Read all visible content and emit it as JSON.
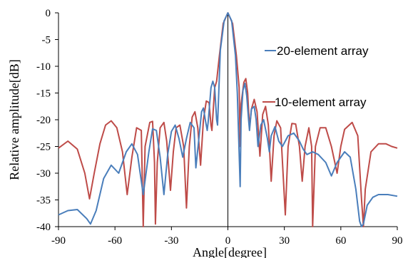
{
  "chart_data": {
    "type": "line",
    "xlabel": "Angle[degree]",
    "ylabel": "Relative amplitude[dB]",
    "xlim": [
      -90,
      90
    ],
    "ylim": [
      -40,
      0
    ],
    "xticks": [
      -90,
      -60,
      -30,
      0,
      30,
      60,
      90
    ],
    "yticks": [
      0,
      -5,
      -10,
      -15,
      -20,
      -25,
      -30,
      -35,
      -40
    ],
    "xtick_labels": [
      "-90",
      "-60",
      "-30",
      "0",
      "30",
      "60",
      "90"
    ],
    "ytick_labels": [
      "0",
      "-5",
      "-10",
      "-15",
      "-20",
      "-25",
      "-30",
      "-35",
      "-40"
    ],
    "grid": false,
    "series": [
      {
        "name": "20-element array",
        "color": "#4a7ebb",
        "points": [
          [
            -90,
            -37.8
          ],
          [
            -85,
            -37
          ],
          [
            -80,
            -36.8
          ],
          [
            -75,
            -38.5
          ],
          [
            -73,
            -39.5
          ],
          [
            -70,
            -37
          ],
          [
            -66,
            -31
          ],
          [
            -62,
            -28.5
          ],
          [
            -58,
            -30
          ],
          [
            -54,
            -26
          ],
          [
            -51,
            -24.5
          ],
          [
            -48,
            -26.5
          ],
          [
            -45,
            -34
          ],
          [
            -42,
            -26
          ],
          [
            -40,
            -21.7
          ],
          [
            -38,
            -22
          ],
          [
            -36,
            -27
          ],
          [
            -34,
            -34
          ],
          [
            -32,
            -26.5
          ],
          [
            -30,
            -22.2
          ],
          [
            -28,
            -21
          ],
          [
            -26,
            -23.5
          ],
          [
            -24,
            -27
          ],
          [
            -22,
            -23.5
          ],
          [
            -20,
            -20.5
          ],
          [
            -18,
            -21.5
          ],
          [
            -17,
            -29
          ],
          [
            -16,
            -25.5
          ],
          [
            -14,
            -18.5
          ],
          [
            -13,
            -17.8
          ],
          [
            -12,
            -20
          ],
          [
            -11,
            -22
          ],
          [
            -10.5,
            -20.5
          ],
          [
            -9,
            -14
          ],
          [
            -8,
            -12.8
          ],
          [
            -7,
            -14
          ],
          [
            -6,
            -20
          ],
          [
            -5.5,
            -21
          ],
          [
            -4,
            -7
          ],
          [
            -2,
            -1.5
          ],
          [
            0,
            0
          ],
          [
            2,
            -1.5
          ],
          [
            4,
            -8
          ],
          [
            5,
            -15
          ],
          [
            6.5,
            -32.5
          ],
          [
            7,
            -20
          ],
          [
            8,
            -14.5
          ],
          [
            9,
            -13.2
          ],
          [
            10,
            -15.5
          ],
          [
            11,
            -20
          ],
          [
            11.5,
            -22
          ],
          [
            12.5,
            -18
          ],
          [
            14,
            -17.5
          ],
          [
            15,
            -20
          ],
          [
            16,
            -25
          ],
          [
            17.5,
            -21
          ],
          [
            19,
            -20
          ],
          [
            21,
            -23.5
          ],
          [
            22,
            -26
          ],
          [
            23,
            -23
          ],
          [
            25,
            -21.3
          ],
          [
            27,
            -24
          ],
          [
            29,
            -25
          ],
          [
            32,
            -23
          ],
          [
            35,
            -22.5
          ],
          [
            38,
            -24
          ],
          [
            40,
            -25.5
          ],
          [
            42,
            -26.5
          ],
          [
            45,
            -26
          ],
          [
            48,
            -26.5
          ],
          [
            52,
            -28
          ],
          [
            55,
            -30.5
          ],
          [
            58,
            -28
          ],
          [
            62,
            -26
          ],
          [
            65,
            -27
          ],
          [
            68,
            -33
          ],
          [
            70,
            -39
          ],
          [
            71,
            -40
          ],
          [
            72,
            -39.5
          ],
          [
            74,
            -36
          ],
          [
            77,
            -34.5
          ],
          [
            80,
            -34
          ],
          [
            85,
            -34
          ],
          [
            90,
            -34.3
          ]
        ]
      },
      {
        "name": "10-element array",
        "color": "#be4b48",
        "points": [
          [
            -90,
            -25.3
          ],
          [
            -85,
            -24
          ],
          [
            -80,
            -25.5
          ],
          [
            -76,
            -30
          ],
          [
            -73.5,
            -34.8
          ],
          [
            -71,
            -30
          ],
          [
            -68,
            -24.5
          ],
          [
            -65,
            -21
          ],
          [
            -62,
            -20.2
          ],
          [
            -59,
            -21.5
          ],
          [
            -56,
            -26
          ],
          [
            -53.5,
            -34
          ],
          [
            -51,
            -27
          ],
          [
            -48.5,
            -21.5
          ],
          [
            -46,
            -22
          ],
          [
            -45,
            -40
          ],
          [
            -44,
            -25
          ],
          [
            -41.5,
            -20.5
          ],
          [
            -40,
            -20.3
          ],
          [
            -39,
            -28
          ],
          [
            -38.5,
            -39.5
          ],
          [
            -37.5,
            -28
          ],
          [
            -36,
            -21.5
          ],
          [
            -34,
            -20.5
          ],
          [
            -32.5,
            -24
          ],
          [
            -30.5,
            -33.2
          ],
          [
            -29,
            -26
          ],
          [
            -27.5,
            -21.5
          ],
          [
            -25.5,
            -21
          ],
          [
            -23.5,
            -25
          ],
          [
            -22,
            -36.5
          ],
          [
            -20.5,
            -25
          ],
          [
            -19,
            -19.5
          ],
          [
            -17.5,
            -18.5
          ],
          [
            -16,
            -21.5
          ],
          [
            -14.5,
            -28.5
          ],
          [
            -13,
            -20
          ],
          [
            -11.5,
            -16.5
          ],
          [
            -10,
            -16.8
          ],
          [
            -9,
            -21
          ],
          [
            -8.5,
            -22
          ],
          [
            -7,
            -14
          ],
          [
            -6,
            -12.8
          ],
          [
            -4.5,
            -8
          ],
          [
            -2.5,
            -2
          ],
          [
            0,
            0
          ],
          [
            2.5,
            -2
          ],
          [
            4.5,
            -8
          ],
          [
            6,
            -14
          ],
          [
            6.5,
            -25
          ],
          [
            7,
            -17
          ],
          [
            8.5,
            -13
          ],
          [
            9.5,
            -12.3
          ],
          [
            10.5,
            -15
          ],
          [
            11.5,
            -21.5
          ],
          [
            12.5,
            -18
          ],
          [
            14,
            -16.2
          ],
          [
            15.5,
            -18.5
          ],
          [
            17,
            -26.8
          ],
          [
            18.5,
            -19
          ],
          [
            20,
            -17.5
          ],
          [
            21.5,
            -21
          ],
          [
            23,
            -31.5
          ],
          [
            24.5,
            -23
          ],
          [
            26,
            -20.2
          ],
          [
            28,
            -21.5
          ],
          [
            30.5,
            -37.8
          ],
          [
            32,
            -25
          ],
          [
            34,
            -20.7
          ],
          [
            36,
            -20.8
          ],
          [
            38,
            -25
          ],
          [
            39.5,
            -31.5
          ],
          [
            41,
            -25
          ],
          [
            43,
            -21.5
          ],
          [
            44.5,
            -25
          ],
          [
            45,
            -40
          ],
          [
            46.5,
            -25
          ],
          [
            49,
            -21.5
          ],
          [
            52,
            -21.5
          ],
          [
            55,
            -25
          ],
          [
            58,
            -30
          ],
          [
            60,
            -25
          ],
          [
            62,
            -21.8
          ],
          [
            66,
            -20.5
          ],
          [
            69,
            -23
          ],
          [
            71,
            -35
          ],
          [
            72,
            -40
          ],
          [
            73,
            -33
          ],
          [
            76,
            -26
          ],
          [
            80,
            -24.5
          ],
          [
            84,
            -24.5
          ],
          [
            87,
            -25
          ],
          [
            90,
            -25.3
          ]
        ]
      }
    ],
    "legend": [
      {
        "label": "20-element array",
        "placement": "upper-right"
      },
      {
        "label": "10-element array",
        "placement": "middle-right"
      }
    ]
  }
}
